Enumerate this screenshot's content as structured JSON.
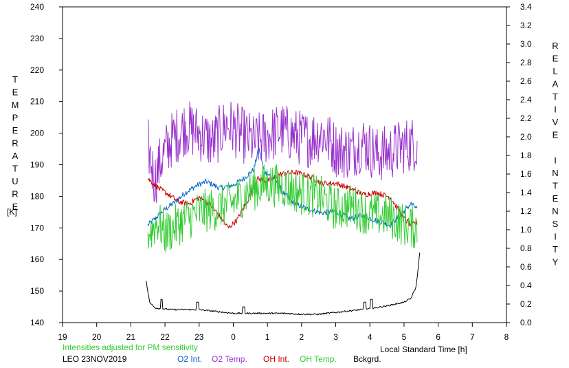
{
  "chart_data": {
    "type": "line",
    "xlabel": "Local Standard Time [h]",
    "ylabel_left": "TEMPERATURE",
    "ylabel_left_unit": "[K]",
    "ylabel_right": "RELATIVE INTENSITY",
    "x_ticks": [
      19,
      20,
      21,
      22,
      23,
      24,
      25,
      26,
      27,
      28,
      29,
      30,
      31,
      32
    ],
    "x_tick_labels": [
      "19",
      "20",
      "21",
      "22",
      "23",
      "0",
      "1",
      "2",
      "3",
      "4",
      "5",
      "6",
      "7",
      "8"
    ],
    "xlim": [
      19,
      32
    ],
    "ylim_left": [
      140,
      240
    ],
    "ylim_right": [
      0.0,
      3.4
    ],
    "y_ticks_left": [
      "140",
      "150",
      "160",
      "170",
      "180",
      "190",
      "200",
      "210",
      "220",
      "230",
      "240"
    ],
    "y_ticks_right": [
      "0.0",
      "0.2",
      "0.4",
      "0.6",
      "0.8",
      "1.0",
      "1.2",
      "1.4",
      "1.6",
      "1.8",
      "2.0",
      "2.2",
      "2.4",
      "2.6",
      "2.8",
      "3.0",
      "3.2",
      "3.4"
    ],
    "note": "Intensities adjusted for PM sensitivity",
    "station": "LEO 23NOV2019",
    "grid": false,
    "series": [
      {
        "name": "O2 Int.",
        "axis": "right",
        "color": "#0066cc",
        "noise": 0.03,
        "x": [
          21.5,
          21.8,
          22.0,
          22.3,
          22.6,
          22.9,
          23.2,
          23.6,
          24.0,
          24.3,
          24.6,
          24.75,
          24.9,
          25.2,
          25.5,
          25.8,
          26.2,
          26.6,
          27.0,
          27.4,
          27.8,
          28.2,
          28.6,
          29.0,
          29.2,
          29.4
        ],
        "y": [
          1.05,
          1.15,
          1.22,
          1.3,
          1.4,
          1.47,
          1.52,
          1.45,
          1.48,
          1.55,
          1.65,
          1.88,
          1.63,
          1.55,
          1.38,
          1.28,
          1.22,
          1.18,
          1.2,
          1.12,
          1.15,
          1.1,
          1.05,
          1.2,
          1.28,
          1.22
        ]
      },
      {
        "name": "O2 Temp.",
        "axis": "left",
        "color": "#9933cc",
        "noise": 9,
        "x": [
          21.5,
          21.7,
          21.9,
          22.2,
          22.6,
          23.0,
          23.4,
          23.8,
          24.2,
          24.6,
          25.0,
          25.4,
          25.8,
          26.2,
          26.6,
          27.0,
          27.4,
          27.8,
          28.2,
          28.6,
          29.0,
          29.4
        ],
        "y": [
          196,
          185,
          192,
          198,
          202,
          200,
          197,
          203,
          200,
          197,
          199,
          201,
          199,
          198,
          200,
          195,
          194,
          197,
          193,
          194,
          196,
          197
        ]
      },
      {
        "name": "OH Int.",
        "axis": "right",
        "color": "#cc0000",
        "noise": 0.03,
        "x": [
          21.5,
          21.8,
          22.1,
          22.4,
          22.7,
          23.0,
          23.3,
          23.6,
          23.85,
          24.1,
          24.4,
          24.7,
          25.0,
          25.4,
          25.8,
          26.2,
          26.6,
          27.0,
          27.4,
          27.8,
          28.2,
          28.6,
          29.0,
          29.2,
          29.4
        ],
        "y": [
          1.55,
          1.45,
          1.38,
          1.3,
          1.28,
          1.35,
          1.28,
          1.15,
          1.02,
          1.1,
          1.3,
          1.55,
          1.52,
          1.6,
          1.62,
          1.58,
          1.5,
          1.5,
          1.45,
          1.38,
          1.4,
          1.35,
          1.12,
          1.05,
          1.08
        ]
      },
      {
        "name": "OH Temp.",
        "axis": "left",
        "color": "#33cc33",
        "noise": 7,
        "x": [
          21.5,
          21.8,
          22.0,
          22.5,
          23.0,
          23.5,
          24.0,
          24.5,
          25.0,
          25.5,
          26.0,
          26.5,
          27.0,
          27.5,
          28.0,
          28.5,
          29.0,
          29.4
        ],
        "y": [
          168,
          172,
          168,
          172,
          175,
          176,
          178,
          182,
          184,
          183,
          181,
          180,
          176,
          177,
          174,
          174,
          171,
          170
        ]
      },
      {
        "name": "Bckgrd.",
        "axis": "right",
        "color": "#000000",
        "noise": 0.008,
        "x": [
          21.45,
          21.55,
          21.7,
          21.9,
          22.2,
          22.6,
          23.0,
          23.5,
          24.0,
          24.5,
          25.0,
          25.5,
          26.0,
          26.5,
          27.0,
          27.5,
          28.0,
          28.5,
          29.0,
          29.2,
          29.35,
          29.42,
          29.47
        ],
        "y": [
          0.45,
          0.22,
          0.16,
          0.15,
          0.14,
          0.14,
          0.14,
          0.12,
          0.1,
          0.1,
          0.1,
          0.1,
          0.09,
          0.09,
          0.11,
          0.13,
          0.15,
          0.18,
          0.22,
          0.26,
          0.38,
          0.6,
          0.8
        ]
      }
    ],
    "spikes": [
      {
        "series": "Bckgrd.",
        "x": 21.9,
        "y": 0.25
      },
      {
        "series": "Bckgrd.",
        "x": 22.95,
        "y": 0.22
      },
      {
        "series": "Bckgrd.",
        "x": 24.3,
        "y": 0.17
      },
      {
        "series": "Bckgrd.",
        "x": 27.85,
        "y": 0.22
      },
      {
        "series": "Bckgrd.",
        "x": 28.05,
        "y": 0.25
      }
    ]
  }
}
